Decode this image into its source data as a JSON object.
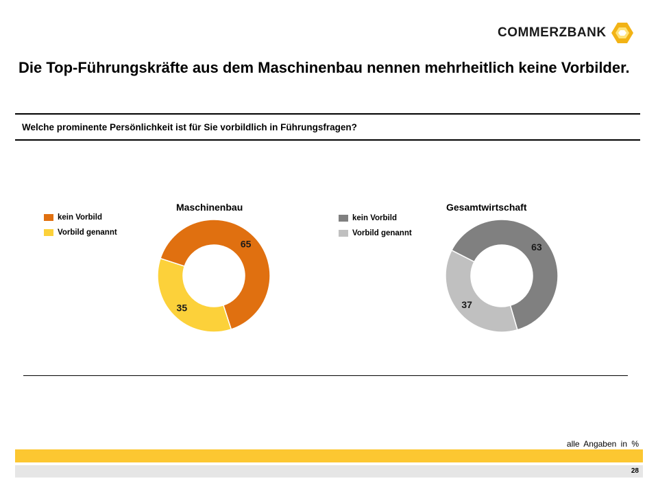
{
  "brand": {
    "name": "COMMERZBANK",
    "accent": "#fcc731",
    "logo_dark": "#f2b315"
  },
  "slide": {
    "title": "Die Top-Führungskräfte aus dem Maschinenbau nennen mehrheitlich keine Vorbilder.",
    "question": "Welche prominente Persönlichkeit ist für Sie vorbildlich in Führungsfragen?",
    "footnote": "alle Angaben in %",
    "page_number": "28"
  },
  "chart_data": [
    {
      "type": "pie",
      "title": "Maschinenbau",
      "categories": [
        "kein Vorbild",
        "Vorbild genannt"
      ],
      "values": [
        65,
        35
      ],
      "colors": [
        "#e07010",
        "#fcd13a"
      ],
      "legend": "left"
    },
    {
      "type": "pie",
      "title": "Gesamtwirtschaft",
      "categories": [
        "kein Vorbild",
        "Vorbild genannt"
      ],
      "values": [
        63,
        37
      ],
      "colors": [
        "#808080",
        "#c0c0c0"
      ],
      "legend": "left"
    }
  ]
}
